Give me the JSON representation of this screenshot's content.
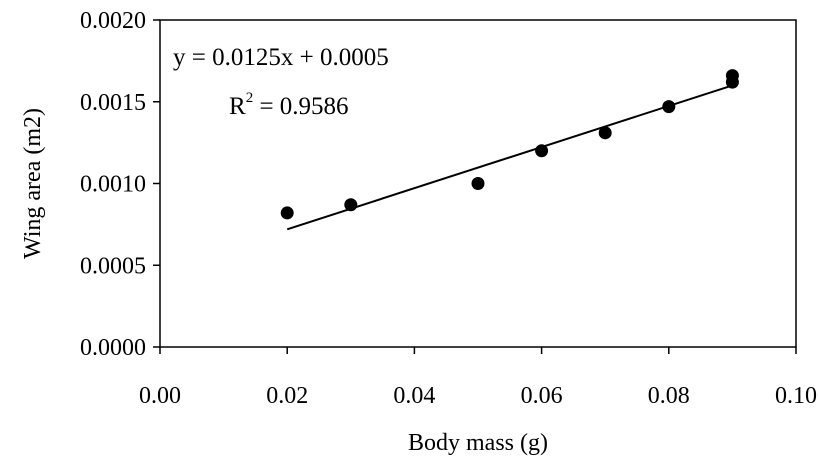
{
  "chart_data": {
    "type": "scatter",
    "title": "",
    "xlabel": "Body mass (g)",
    "ylabel": "Wing area (m2)",
    "xlim": [
      0.0,
      0.1
    ],
    "ylim": [
      0.0,
      0.002
    ],
    "x_ticks": [
      "0.00",
      "0.02",
      "0.04",
      "0.06",
      "0.08",
      "0.10"
    ],
    "y_ticks": [
      "0.0000",
      "0.0005",
      "0.0010",
      "0.0015",
      "0.0020"
    ],
    "grid": false,
    "legend": "none",
    "series": [
      {
        "points": [
          {
            "x": 0.02,
            "y": 0.00082
          },
          {
            "x": 0.03,
            "y": 0.00087
          },
          {
            "x": 0.05,
            "y": 0.001
          },
          {
            "x": 0.06,
            "y": 0.0012
          },
          {
            "x": 0.07,
            "y": 0.00131
          },
          {
            "x": 0.08,
            "y": 0.00147
          },
          {
            "x": 0.09,
            "y": 0.00162
          },
          {
            "x": 0.09,
            "y": 0.00166
          }
        ],
        "color": "#000000"
      }
    ],
    "trendline": {
      "type": "linear",
      "x_range": [
        0.02,
        0.09
      ],
      "y_range": [
        0.00072,
        0.0016
      ],
      "equation": "y = 0.0125x + 0.0005",
      "r2_label": "R",
      "r2_superscript": "2",
      "r2_value": " = 0.9586"
    }
  }
}
